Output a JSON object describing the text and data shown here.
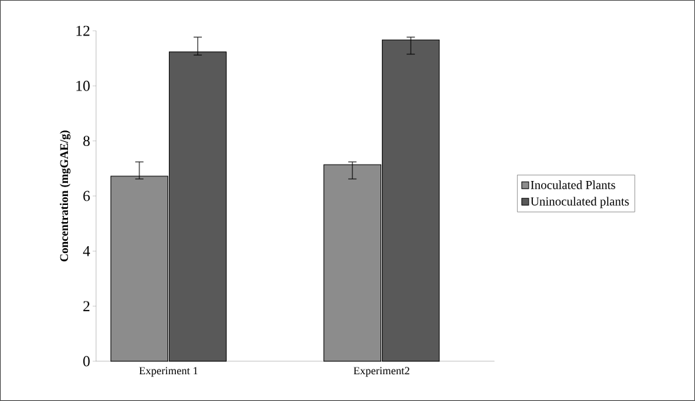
{
  "chart_data": {
    "type": "bar",
    "ylabel": "Concentration (mgGAE/g)",
    "categories": [
      "Experiment 1",
      "Experiment2"
    ],
    "series": [
      {
        "name": "Inoculated Plants",
        "color": "#8c8c8c",
        "values": [
          6.72,
          7.14
        ],
        "errors": [
          [
            6.62,
            7.24
          ],
          [
            6.62,
            7.24
          ]
        ]
      },
      {
        "name": "Uninoculated plants",
        "color": "#595959",
        "values": [
          11.23,
          11.67
        ],
        "errors": [
          [
            11.12,
            11.77
          ],
          [
            11.15,
            11.77
          ]
        ]
      }
    ],
    "ylim": [
      0,
      12
    ],
    "yticks": [
      0,
      2,
      4,
      6,
      8,
      10,
      12
    ],
    "legend": "right",
    "grid": false
  }
}
